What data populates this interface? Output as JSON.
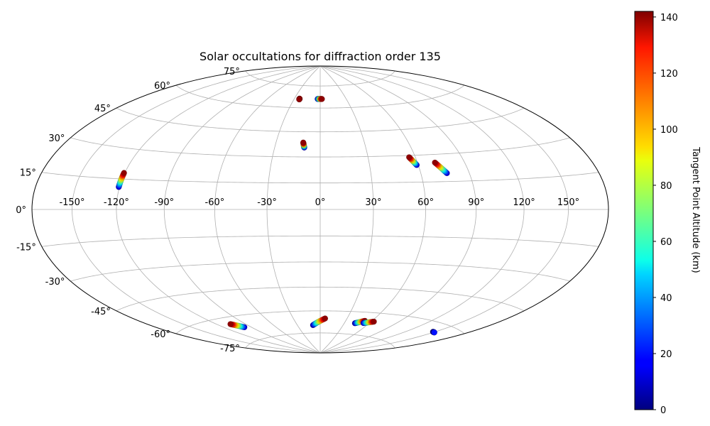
{
  "chart_data": {
    "type": "scatter",
    "projection": "hammer",
    "title": "Solar occultations for diffraction order 135",
    "grid": true,
    "lon_ticks": [
      -150,
      -120,
      -90,
      -60,
      -30,
      0,
      30,
      60,
      90,
      120,
      150
    ],
    "lat_ticks": [
      75,
      60,
      45,
      30,
      15,
      0,
      -15,
      -30,
      -45,
      -60,
      -75
    ],
    "lon_tick_labels": [
      "-150°",
      "-120°",
      "-90°",
      "-60°",
      "-30°",
      "0°",
      "30°",
      "60°",
      "90°",
      "120°",
      "150°"
    ],
    "lat_tick_labels": [
      "75°",
      "60°",
      "45°",
      "30°",
      "15°",
      "0°",
      "-15°",
      "-30°",
      "-45°",
      "-60°",
      "-75°"
    ],
    "colorbar": {
      "label": "Tangent Point Altitude (km)",
      "range": [
        0,
        142
      ],
      "ticks": [
        0,
        20,
        40,
        60,
        80,
        100,
        120,
        140
      ],
      "tick_labels": [
        "0",
        "20",
        "40",
        "60",
        "80",
        "100",
        "120",
        "140"
      ],
      "colormap": "jet"
    },
    "tracks": [
      {
        "lon_start": -120.5,
        "lat_start": 11.0,
        "lon_end": -120.5,
        "lat_end": 18.0,
        "alt_start": 10,
        "alt_end": 140
      },
      {
        "lon_start": -10.5,
        "lat_start": 35.5,
        "lon_end": -11.5,
        "lat_end": 38.5,
        "alt_start": 10,
        "alt_end": 140
      },
      {
        "lon_start": 59.0,
        "lat_start": 24.5,
        "lon_end": 56.0,
        "lat_end": 29.0,
        "alt_start": 10,
        "alt_end": 140
      },
      {
        "lon_start": 76.0,
        "lat_start": 19.5,
        "lon_end": 71.0,
        "lat_end": 25.5,
        "alt_start": 10,
        "alt_end": 140
      },
      {
        "lon_start": -3.0,
        "lat_start": 66.0,
        "lon_end": 2.0,
        "lat_end": 66.0,
        "alt_start": 10,
        "alt_end": 140
      },
      {
        "lon_start": -24.0,
        "lat_start": 66.0,
        "lon_end": -24.0,
        "lat_end": 65.5,
        "alt_start": 120,
        "alt_end": 140
      },
      {
        "lon_start": -98.0,
        "lat_start": -67.0,
        "lon_end": -106.0,
        "lat_end": -64.0,
        "alt_start": 10,
        "alt_end": 140
      },
      {
        "lon_start": -9.5,
        "lat_start": -69.5,
        "lon_end": 5.5,
        "lat_end": -65.0,
        "alt_start": 5,
        "alt_end": 140
      },
      {
        "lon_start": 43.0,
        "lat_start": -67.5,
        "lon_end": 52.0,
        "lat_end": -65.5,
        "alt_start": 5,
        "alt_end": 140
      },
      {
        "lon_start": 53.0,
        "lat_start": -67.0,
        "lon_end": 63.0,
        "lat_end": -65.5,
        "alt_start": 10,
        "alt_end": 140
      },
      {
        "lon_start": 148.0,
        "lat_start": -64.5,
        "lon_end": 151.0,
        "lat_end": -64.5,
        "alt_start": 5,
        "alt_end": 20
      }
    ]
  }
}
